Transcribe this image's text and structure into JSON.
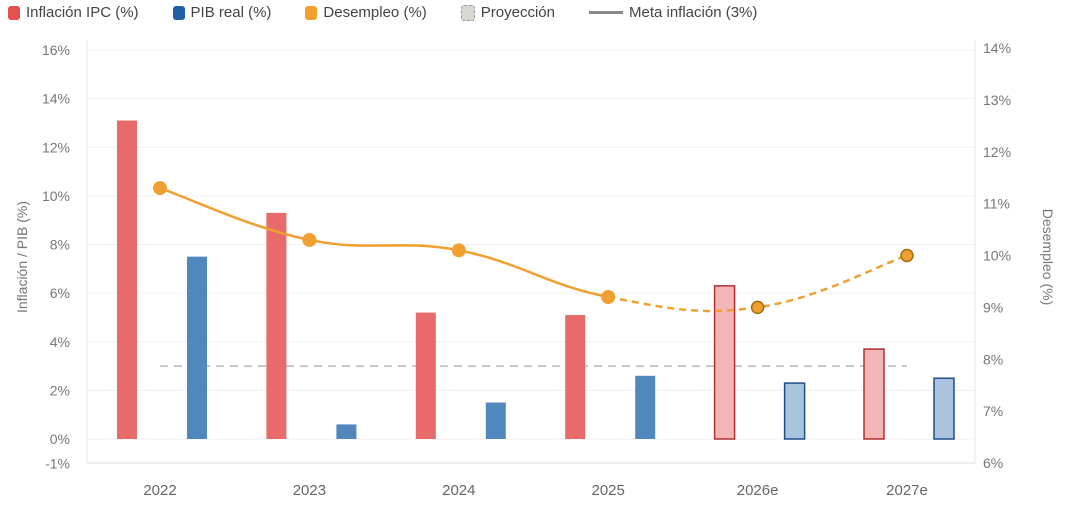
{
  "legend": [
    {
      "label": "Inflación IPC (%)",
      "color": "#e35050",
      "kind": "box"
    },
    {
      "label": "PIB real (%)",
      "color": "#1f5fa5",
      "kind": "box"
    },
    {
      "label": "Desempleo (%)",
      "color": "#f0a030",
      "kind": "box"
    },
    {
      "label": "Proyección",
      "color": "#d8d8d0",
      "kind": "dashed-box"
    },
    {
      "label": "Meta inflación (3%)",
      "color": "#888888",
      "kind": "line"
    }
  ],
  "chart_data": {
    "type": "bar+line",
    "categories": [
      "2022",
      "2023",
      "2024",
      "2025",
      "2026e",
      "2027e"
    ],
    "projected": [
      false,
      false,
      false,
      false,
      true,
      true
    ],
    "series": [
      {
        "name": "Inflación IPC (%)",
        "type": "bar",
        "axis": "left",
        "color": "#e86a6a",
        "values": [
          13.1,
          9.3,
          5.2,
          5.1,
          6.3,
          3.7
        ]
      },
      {
        "name": "PIB real (%)",
        "type": "bar",
        "axis": "left",
        "color": "#5087bd",
        "values": [
          7.5,
          0.6,
          1.5,
          2.6,
          2.3,
          2.5
        ]
      },
      {
        "name": "Desempleo (%)",
        "type": "line",
        "axis": "right",
        "color": "#f0a030",
        "values": [
          11.3,
          10.3,
          10.1,
          9.2,
          9.0,
          10.0
        ]
      }
    ],
    "reference_line": {
      "name": "Meta inflación (3%)",
      "value": 3,
      "axis": "left",
      "style": "dashed"
    },
    "ylabel": "Inflación / PIB (%)",
    "y2label": "Desempleo (%)",
    "ylim": [
      -1,
      16
    ],
    "y2lim": [
      6,
      14
    ],
    "yticks": [
      "-1%",
      "0%",
      "2%",
      "4%",
      "6%",
      "8%",
      "10%",
      "12%",
      "14%",
      "16%"
    ],
    "y2ticks": [
      "6%",
      "7%",
      "8%",
      "9%",
      "10%",
      "11%",
      "12%",
      "13%",
      "14%"
    ],
    "grid": true,
    "legend_position": "top-left"
  }
}
